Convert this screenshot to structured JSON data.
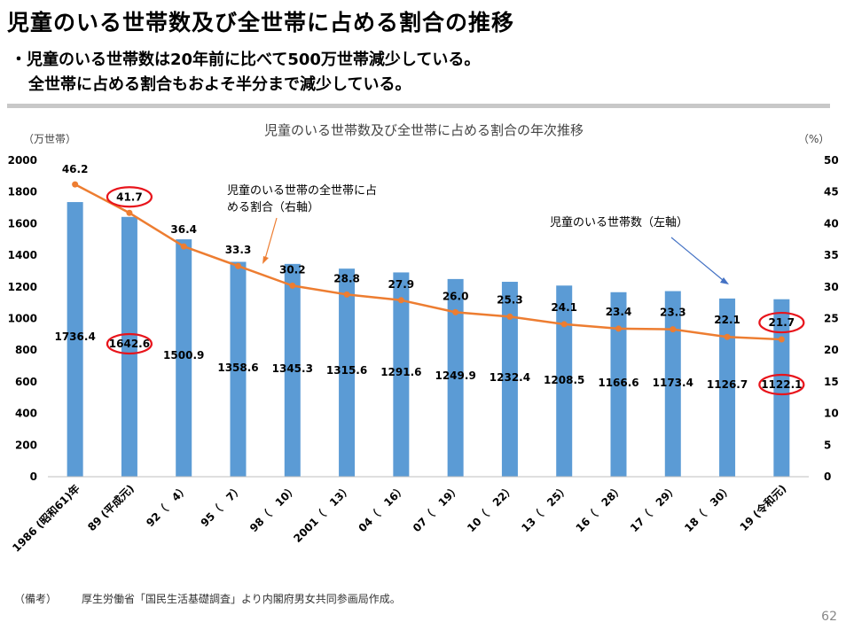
{
  "page": {
    "title": "児童のいる世帯数及び全世帯に占める割合の推移",
    "bullets": [
      "・児童のいる世帯数は20年前に比べて500万世帯減少している。",
      "全世帯に占める割合もおよそ半分まで減少している。"
    ],
    "source_label": "（備考）",
    "source_text": "厚生労働省「国民生活基礎調査」より内閣府男女共同参画局作成。",
    "page_number": "62"
  },
  "chart_data": {
    "type": "bar",
    "title": "児童のいる世帯数及び全世帯に占める割合の年次推移",
    "y_left_unit": "（万世帯）",
    "y_right_unit": "（%）",
    "categories": [
      "1986 (昭和61)年",
      "89 (平成元)",
      "92（　4）",
      "95（　7）",
      "98（　10）",
      "2001（　13）",
      "04（　16）",
      "07（　19）",
      "10（　22）",
      "13（　25）",
      "16（　28）",
      "17（　29）",
      "18（　30）",
      "19 (令和元)"
    ],
    "series": [
      {
        "name": "児童のいる世帯数（左軸）",
        "type": "bar",
        "axis": "left",
        "color": "#5b9bd5",
        "values": [
          1736.4,
          1642.6,
          1500.9,
          1358.6,
          1345.3,
          1315.6,
          1291.6,
          1249.9,
          1232.4,
          1208.5,
          1166.6,
          1173.4,
          1126.7,
          1122.1
        ]
      },
      {
        "name": "児童のいる世帯の全世帯に占める割合（右軸）",
        "type": "line",
        "axis": "right",
        "color": "#ed7d31",
        "values": [
          46.2,
          41.7,
          36.4,
          33.3,
          30.2,
          28.8,
          27.9,
          26.0,
          25.3,
          24.1,
          23.4,
          23.3,
          22.1,
          21.7
        ]
      }
    ],
    "ylim_left": [
      0,
      2000
    ],
    "yticks_left": [
      0,
      200,
      400,
      600,
      800,
      1000,
      1200,
      1400,
      1600,
      1800,
      2000
    ],
    "ylim_right": [
      0,
      50
    ],
    "yticks_right": [
      0,
      5,
      10,
      15,
      20,
      25,
      30,
      35,
      40,
      45,
      50
    ],
    "grid": false,
    "annotations": [
      {
        "text_lines": [
          "児童のいる世帯の全世帯に占",
          "める割合（右軸）"
        ],
        "points_to": "line"
      },
      {
        "text_lines": [
          "児童のいる世帯数（左軸）"
        ],
        "points_to": "bar"
      }
    ],
    "highlights": [
      {
        "series": 1,
        "index": 1
      },
      {
        "series": 0,
        "index": 1
      },
      {
        "series": 1,
        "index": 13
      },
      {
        "series": 0,
        "index": 13
      }
    ],
    "highlight_color": "#e8141b"
  }
}
